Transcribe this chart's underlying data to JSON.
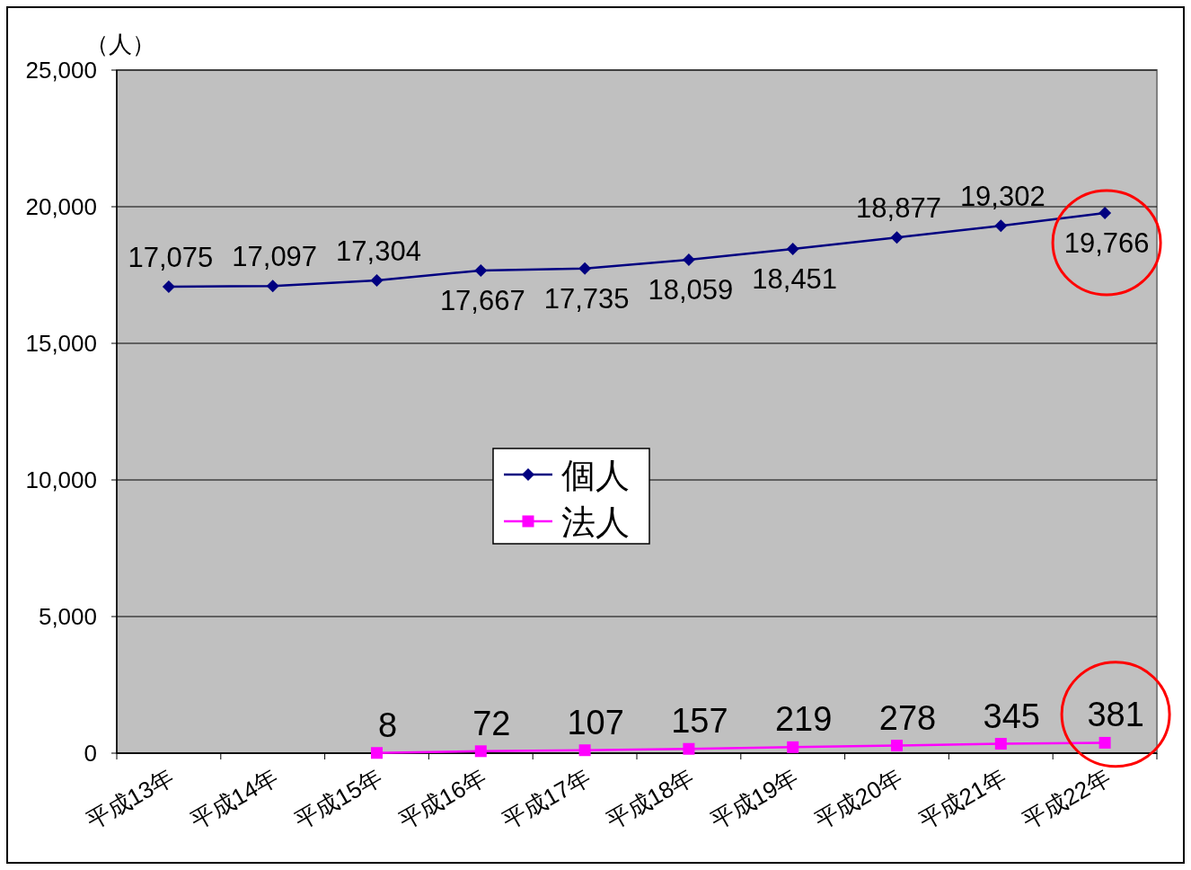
{
  "chart_data": {
    "type": "line",
    "ylabel": "（人）",
    "categories": [
      "平成13年",
      "平成14年",
      "平成15年",
      "平成16年",
      "平成17年",
      "平成18年",
      "平成19年",
      "平成20年",
      "平成21年",
      "平成22年"
    ],
    "series": [
      {
        "name": "個人",
        "color": "#000080",
        "marker": "diamond",
        "values": [
          17075,
          17097,
          17304,
          17667,
          17735,
          18059,
          18451,
          18877,
          19302,
          19766
        ],
        "value_labels": [
          "17,075",
          "17,097",
          "17,304",
          "17,667",
          "17,735",
          "18,059",
          "18,451",
          "18,877",
          "19,302",
          "19,766"
        ]
      },
      {
        "name": "法人",
        "color": "#ff00ff",
        "marker": "square",
        "values": [
          null,
          null,
          8,
          72,
          107,
          157,
          219,
          278,
          345,
          381
        ],
        "value_labels": [
          null,
          null,
          "8",
          "72",
          "107",
          "157",
          "219",
          "278",
          "345",
          "381"
        ]
      }
    ],
    "ylim": [
      0,
      25000
    ],
    "yticks": [
      {
        "value": 0,
        "label": "0"
      },
      {
        "value": 5000,
        "label": "5,000"
      },
      {
        "value": 10000,
        "label": "10,000"
      },
      {
        "value": 15000,
        "label": "15,000"
      },
      {
        "value": 20000,
        "label": "20,000"
      },
      {
        "value": 25000,
        "label": "25,000"
      }
    ],
    "grid": "y",
    "legend": "center",
    "line_style": "solid"
  }
}
